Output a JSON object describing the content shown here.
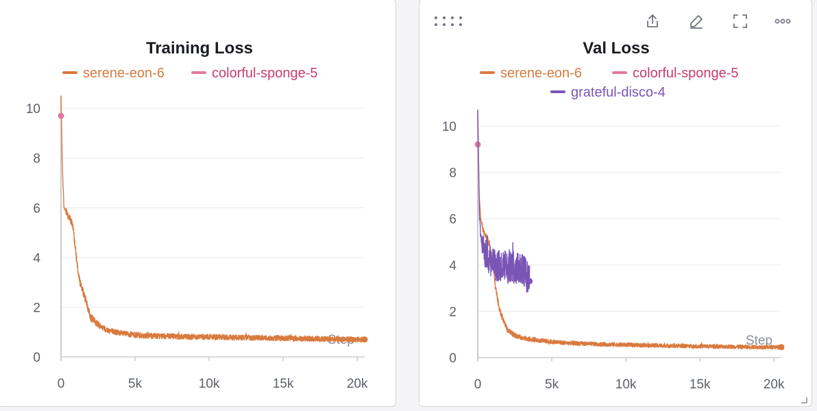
{
  "colors": {
    "serene": "#d97a3f",
    "colorful": "#e07aa0",
    "colorful_text": "#c93c6e",
    "grateful": "#7a55b6",
    "grid": "#e8e9ec",
    "axis": "#c9cbd0"
  },
  "toolbar_icons": [
    "share-icon",
    "edit-icon",
    "fullscreen-icon",
    "more-icon"
  ],
  "chart_data": [
    {
      "type": "line",
      "title": "Training Loss",
      "xlabel": "Step",
      "ylabel": "",
      "xlim": [
        0,
        20500
      ],
      "ylim": [
        0,
        10.5
      ],
      "x_ticks": [
        0,
        5000,
        10000,
        15000,
        20000
      ],
      "x_tick_labels": [
        "0",
        "5k",
        "10k",
        "15k",
        "20k"
      ],
      "y_ticks": [
        0,
        2,
        4,
        6,
        8,
        10
      ],
      "y_tick_labels": [
        "0",
        "2",
        "4",
        "6",
        "8",
        "10"
      ],
      "grid": true,
      "legend_position": "top-center",
      "series": [
        {
          "name": "serene-eon-6",
          "color_key": "serene",
          "x": [
            0,
            100,
            200,
            400,
            800,
            1000,
            1200,
            1500,
            2000,
            2500,
            3000,
            4000,
            5000,
            6000,
            8000,
            10000,
            12000,
            14000,
            16000,
            18000,
            20000,
            20500
          ],
          "y": [
            10.5,
            7.5,
            6.0,
            5.8,
            5.3,
            4.2,
            3.2,
            2.6,
            1.6,
            1.3,
            1.1,
            0.95,
            0.88,
            0.85,
            0.82,
            0.8,
            0.78,
            0.76,
            0.74,
            0.72,
            0.7,
            0.7
          ],
          "noise": 0.16
        },
        {
          "name": "colorful-sponge-5",
          "color_key": "colorful",
          "x": [
            0
          ],
          "y": [
            9.7
          ]
        }
      ]
    },
    {
      "type": "line",
      "title": "Val Loss",
      "xlabel": "Step",
      "ylabel": "",
      "xlim": [
        0,
        20500
      ],
      "ylim": [
        0,
        10.5
      ],
      "x_ticks": [
        0,
        5000,
        10000,
        15000,
        20000
      ],
      "x_tick_labels": [
        "0",
        "5k",
        "10k",
        "15k",
        "20k"
      ],
      "y_ticks": [
        0,
        2,
        4,
        6,
        8,
        10
      ],
      "y_tick_labels": [
        "0",
        "2",
        "4",
        "6",
        "8",
        "10"
      ],
      "grid": true,
      "legend_position": "top-center",
      "series": [
        {
          "name": "serene-eon-6",
          "color_key": "serene",
          "x": [
            0,
            100,
            200,
            400,
            800,
            1000,
            1200,
            1500,
            2000,
            2500,
            3000,
            4000,
            5000,
            6000,
            8000,
            10000,
            12000,
            14000,
            16000,
            18000,
            20000,
            20500
          ],
          "y": [
            10.8,
            7.0,
            6.0,
            5.4,
            4.9,
            4.2,
            3.0,
            2.0,
            1.2,
            0.95,
            0.85,
            0.75,
            0.68,
            0.63,
            0.58,
            0.55,
            0.52,
            0.5,
            0.48,
            0.46,
            0.45,
            0.45
          ],
          "noise": 0.14
        },
        {
          "name": "colorful-sponge-5",
          "color_key": "colorful",
          "x": [
            0
          ],
          "y": [
            9.2
          ]
        },
        {
          "name": "grateful-disco-4",
          "color_key": "grateful",
          "x": [
            0,
            100,
            200,
            400,
            800,
            1200,
            1600,
            2000,
            2500,
            3000,
            3500
          ],
          "y": [
            10.8,
            6.5,
            5.2,
            4.6,
            4.2,
            4.0,
            3.95,
            3.9,
            3.9,
            3.85,
            3.3
          ],
          "noise": 0.7
        }
      ]
    }
  ]
}
